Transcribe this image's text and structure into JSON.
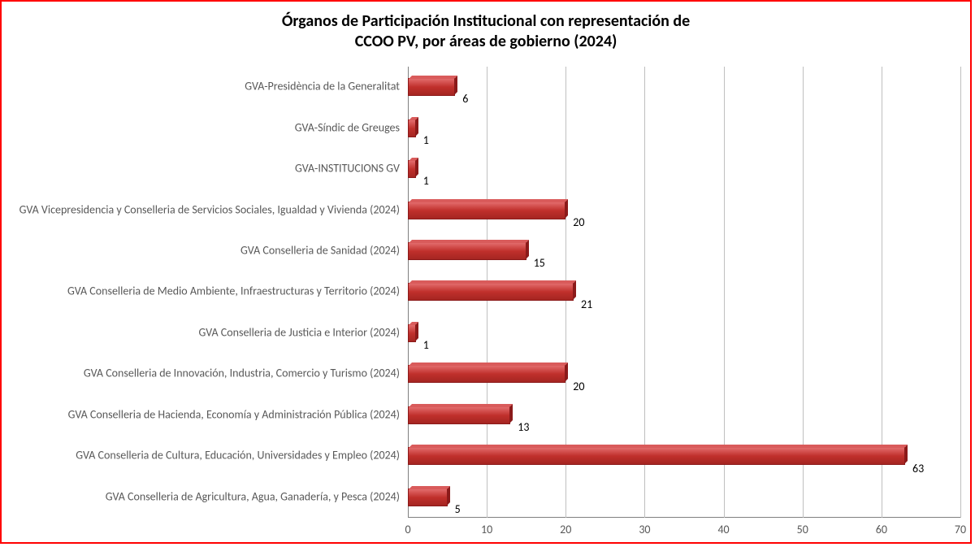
{
  "chart": {
    "type": "bar-horizontal",
    "title_line1": "Órganos de Participación Institucional con representación de",
    "title_line2": "CCOO PV, por áreas de gobierno (2024)",
    "title_fontsize": 20,
    "title_color": "#000000",
    "border_color": "#ff0000",
    "background_color": "#ffffff",
    "grid_color": "#bfbfbf",
    "axis_color": "#808080",
    "tick_label_color": "#595959",
    "value_label_color": "#000000",
    "label_fontsize": 14,
    "bar_fill_top": "#e26b6b",
    "bar_fill_mid": "#c0302c",
    "bar_fill_bottom": "#a52622",
    "bar_border": "#8b1a1a",
    "xlim": [
      0,
      70
    ],
    "xtick_step": 10,
    "xticks": [
      0,
      10,
      20,
      30,
      40,
      50,
      60,
      70
    ],
    "categories": [
      {
        "label": "GVA-Presidència de la Generalitat",
        "value": 6
      },
      {
        "label": "GVA-Síndic de Greuges",
        "value": 1
      },
      {
        "label": "GVA-INSTITUCIONS  GV",
        "value": 1
      },
      {
        "label": "GVA Vicepresidencia y Conselleria de Servicios Sociales, Igualdad y Vivienda (2024)",
        "value": 20
      },
      {
        "label": "GVA Conselleria de Sanidad (2024)",
        "value": 15
      },
      {
        "label": "GVA Conselleria de Medio Ambiente, Infraestructuras y Territorio (2024)",
        "value": 21
      },
      {
        "label": "GVA Conselleria de Justicia e Interior (2024)",
        "value": 1
      },
      {
        "label": "GVA Conselleria de Innovación, Industria, Comercio y Turismo  (2024)",
        "value": 20
      },
      {
        "label": "GVA Conselleria de Hacienda, Economía y Administración Pública (2024)",
        "value": 13
      },
      {
        "label": "GVA Conselleria de Cultura, Educación, Universidades y Empleo (2024)",
        "value": 63
      },
      {
        "label": "GVA Conselleria de Agricultura, Agua, Ganadería, y Pesca (2024)",
        "value": 5
      }
    ]
  }
}
